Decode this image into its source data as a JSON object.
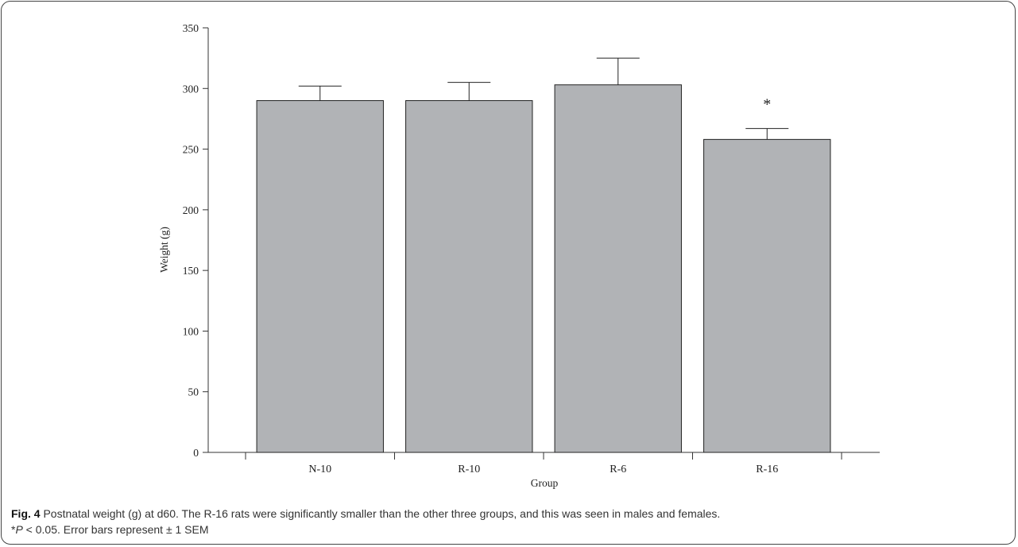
{
  "chart_data": {
    "type": "bar",
    "categories": [
      "N-10",
      "R-10",
      "R-6",
      "R-16"
    ],
    "series": [
      {
        "values": [
          290,
          290,
          303,
          258
        ],
        "errors": [
          12,
          15,
          22,
          9
        ]
      }
    ],
    "xlabel": "Group",
    "ylabel": "Weight (g)",
    "ylim": [
      0,
      350
    ],
    "yticks": [
      "0",
      "50",
      "100",
      "150",
      "200",
      "250",
      "300",
      "350"
    ],
    "annotations": [
      {
        "category": "R-16",
        "text": "*"
      }
    ],
    "bar_color": "#b1b3b6",
    "grid": false,
    "legend": "none"
  },
  "caption": {
    "figure_label": "Fig. 4",
    "line1": " Postnatal weight (g) at d60. The R-16 rats were significantly smaller than the other three groups, and this was seen in males and females.",
    "line2_prefix": "*",
    "line2_italic": "P",
    "line2_rest": " < 0.05. Error bars represent ± 1 SEM"
  }
}
